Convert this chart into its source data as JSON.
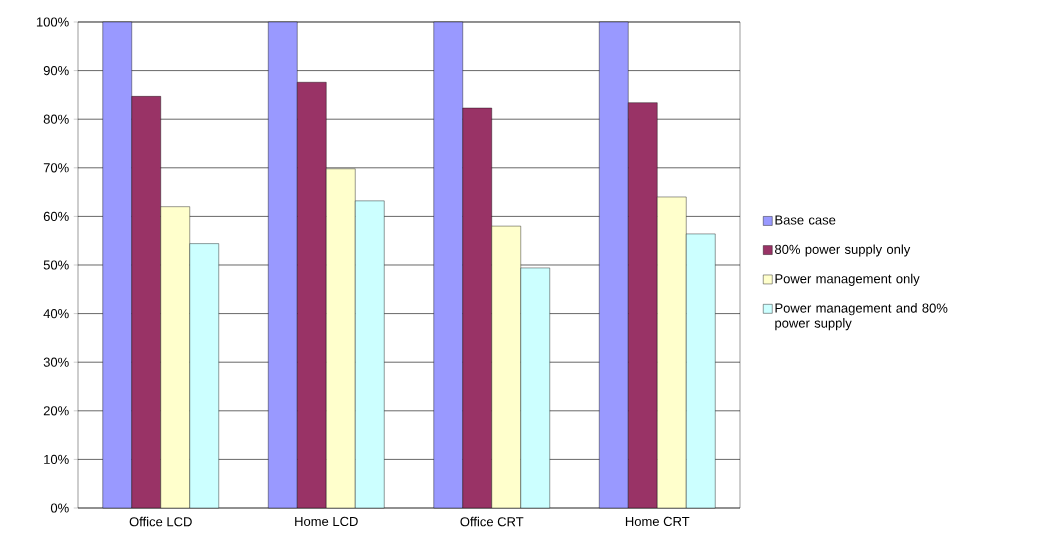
{
  "chart_data": {
    "type": "bar",
    "categories": [
      "Office LCD",
      "Home LCD",
      "Office CRT",
      "Home CRT"
    ],
    "series": [
      {
        "name": "Base case",
        "color": "#9999ff",
        "values": [
          100,
          100,
          100,
          100
        ]
      },
      {
        "name": "80% power supply only",
        "color": "#993366",
        "values": [
          84.7,
          87.6,
          82.3,
          83.4
        ]
      },
      {
        "name": "Power management only",
        "color": "#ffffcc",
        "values": [
          62.0,
          69.8,
          58.0,
          64.0
        ]
      },
      {
        "name": "Power management and 80% power supply",
        "color": "#ccffff",
        "values": [
          54.4,
          63.2,
          49.4,
          56.4
        ]
      }
    ],
    "ylim": [
      0,
      100
    ],
    "yticks": [
      {
        "value": 0,
        "label": "0%"
      },
      {
        "value": 10,
        "label": "10%"
      },
      {
        "value": 20,
        "label": "20%"
      },
      {
        "value": 30,
        "label": "30%"
      },
      {
        "value": 40,
        "label": "40%"
      },
      {
        "value": 50,
        "label": "50%"
      },
      {
        "value": 60,
        "label": "60%"
      },
      {
        "value": 70,
        "label": "70%"
      },
      {
        "value": 80,
        "label": "80%"
      },
      {
        "value": 90,
        "label": "90%"
      },
      {
        "value": 100,
        "label": "100%"
      }
    ],
    "grid": "y",
    "legend": "right"
  }
}
